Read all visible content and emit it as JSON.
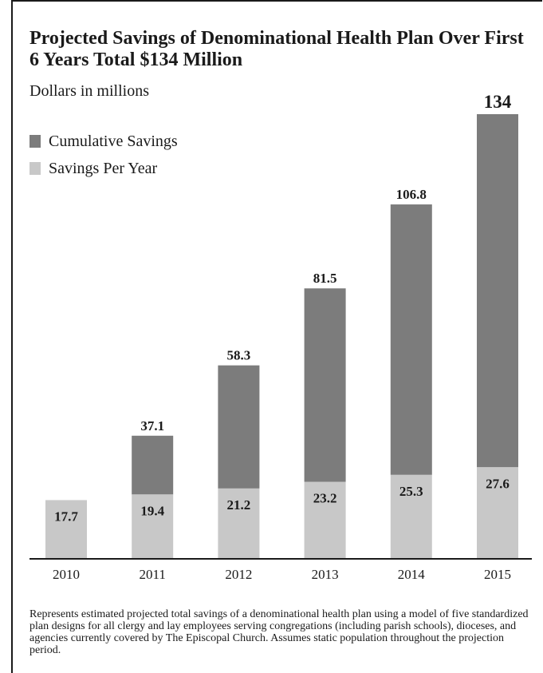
{
  "title": "Projected Savings of Denominational Health Plan Over First 6 Years Total $134 Million",
  "subtitle": "Dollars in millions",
  "footnote": "Represents estimated projected total savings of a denominational health plan using a model of five standardized plan designs for all clergy and lay employees serving congregations (including parish schools), dioceses, and agencies currently covered by The Episcopal Church. Assumes static population throughout the projection period.",
  "colors": {
    "cumulative": "#7c7c7c",
    "per_year": "#c8c8c8",
    "axis": "#1a1a1a"
  },
  "chart_data": {
    "type": "bar",
    "title": "Projected Savings of Denominational Health Plan Over First 6 Years Total $134 Million",
    "subtitle": "Dollars in millions",
    "categories": [
      "2010",
      "2011",
      "2012",
      "2013",
      "2014",
      "2015"
    ],
    "series": [
      {
        "name": "Cumulative Savings",
        "values": [
          null,
          37.1,
          58.3,
          81.5,
          106.8,
          134
        ]
      },
      {
        "name": "Savings Per Year",
        "values": [
          17.7,
          19.4,
          21.2,
          23.2,
          25.3,
          27.6
        ]
      }
    ],
    "cumulative_labels": [
      "",
      "37.1",
      "58.3",
      "81.5",
      "106.8",
      "134"
    ],
    "per_year_labels": [
      "17.7",
      "19.4",
      "21.2",
      "23.2",
      "25.3",
      "27.6"
    ],
    "ylim": [
      0,
      134
    ],
    "grid": false,
    "legend": "top-left"
  }
}
